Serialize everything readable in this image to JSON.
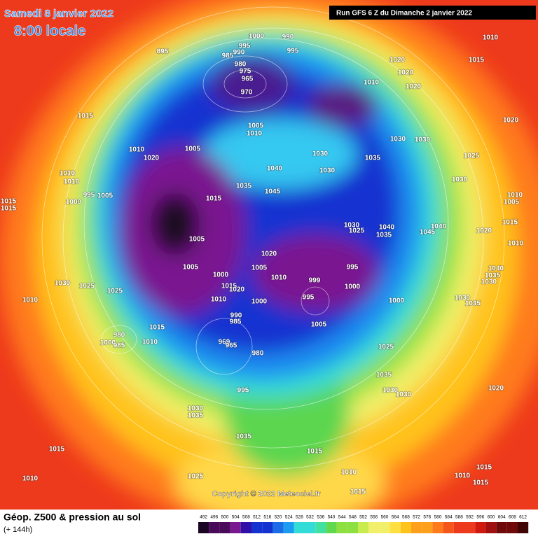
{
  "header": {
    "date": "Samedi 8 janvier 2022",
    "time": "8:00 locale",
    "run": "Run GFS 6 Z du Dimanche 2 janvier 2022"
  },
  "map": {
    "copyright": "Copyright © 2022 Meteociel.fr",
    "isobar_labels": [
      1000,
      990,
      895,
      995,
      985,
      990,
      995,
      980,
      975,
      965,
      970,
      1010,
      1015,
      1020,
      1020,
      1010,
      1020,
      1015,
      1005,
      1010,
      1020,
      1030,
      1030,
      1010,
      1005,
      1020,
      1030,
      1035,
      1025,
      1040,
      1030,
      1010,
      1010,
      1030,
      1035,
      1045,
      995,
      1005,
      1000,
      1015,
      1010,
      1005,
      1015,
      1015,
      1030,
      1025,
      1040,
      1035,
      1045,
      1040,
      1015,
      1020,
      1005,
      1010,
      1020,
      1005,
      1005,
      995,
      1040,
      1035,
      1000,
      1010,
      999,
      1030,
      1030,
      1025,
      1015,
      1020,
      1000,
      1025,
      995,
      1030,
      1035,
      1010,
      1000,
      1000,
      1010,
      990,
      985,
      1005,
      1015,
      980,
      1000,
      985,
      1010,
      969,
      965,
      980,
      1025,
      1035,
      995,
      1030,
      1030,
      1020,
      1030,
      1035,
      1035,
      1015,
      1015,
      1010,
      1025,
      1010,
      1015,
      1015,
      1015,
      1010
    ]
  },
  "footer": {
    "title": "Géop. Z500 & pression au sol",
    "lead": "(+ 144h)",
    "scale": [
      492,
      496,
      500,
      504,
      508,
      512,
      516,
      520,
      524,
      528,
      532,
      536,
      540,
      544,
      548,
      552,
      556,
      560,
      564,
      568,
      572,
      576,
      580,
      584,
      588,
      592,
      596,
      600,
      604,
      608,
      612
    ]
  }
}
